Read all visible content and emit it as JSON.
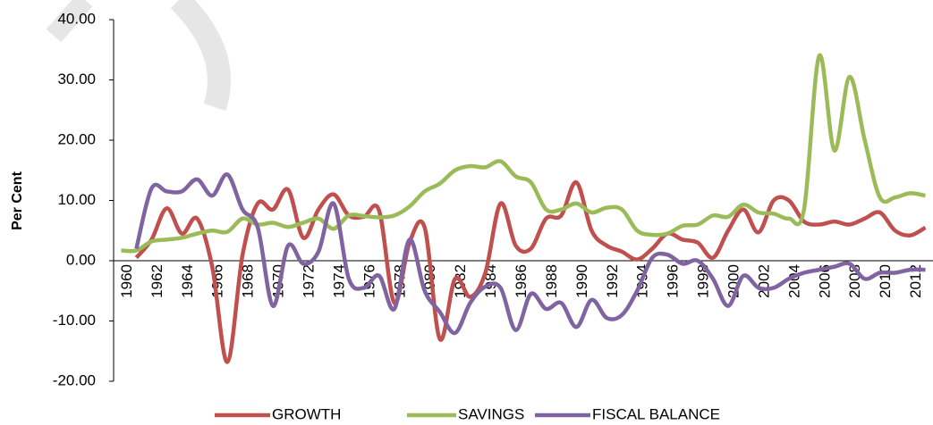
{
  "chart_data": {
    "type": "line",
    "y_axis_label": "Per Cent",
    "categories": [
      "1960",
      null,
      "1962",
      null,
      "1964",
      null,
      "1966",
      null,
      "1968",
      null,
      "1970",
      null,
      "1972",
      null,
      "1974",
      null,
      "1976",
      null,
      "1978",
      null,
      "1980",
      null,
      "1982",
      null,
      "1984",
      null,
      "1986",
      null,
      "1988",
      null,
      "1990",
      null,
      "1992",
      null,
      "1994",
      null,
      "1996",
      null,
      "1998",
      null,
      "2000",
      null,
      "2002",
      null,
      "2004",
      null,
      "2006",
      null,
      "2008",
      null,
      "2010",
      null,
      "2012",
      null
    ],
    "ylim": [
      -20,
      40
    ],
    "yticks": [
      {
        "value": -20,
        "label": "-20.00"
      },
      {
        "value": -10,
        "label": "-10.00"
      },
      {
        "value": 0,
        "label": "0.00"
      },
      {
        "value": 10,
        "label": "10.00"
      },
      {
        "value": 20,
        "label": "20.00"
      },
      {
        "value": 30,
        "label": "30.00"
      },
      {
        "value": 40,
        "label": "40.00"
      }
    ],
    "legend": "bottom",
    "series": [
      {
        "name": "GROWTH",
        "color": "#c0504d",
        "values": [
          null,
          0.5,
          3.5,
          8.7,
          4.5,
          7,
          -1,
          -16.8,
          1,
          9.5,
          8.5,
          11.8,
          3.8,
          8.5,
          11,
          7.5,
          7.3,
          8.3,
          -7,
          3,
          5.5,
          -13,
          -3,
          -6,
          -2,
          9.5,
          2.5,
          2,
          7,
          7.5,
          13,
          5,
          2.5,
          1.5,
          0.2,
          2,
          4.5,
          3.5,
          3,
          0.5,
          5,
          8.5,
          4.7,
          10,
          10,
          6.5,
          6,
          6.5,
          6,
          7,
          8,
          5,
          4.2,
          5.5
        ]
      },
      {
        "name": "SAVINGS",
        "color": "#9bbb59",
        "values": [
          1.7,
          1.7,
          3.2,
          3.5,
          3.8,
          4.5,
          5,
          4.8,
          7,
          6,
          6.3,
          5.6,
          6.3,
          7,
          5.3,
          7.5,
          7.4,
          7.2,
          7.5,
          9,
          11.5,
          12.8,
          15,
          15.7,
          15.5,
          16.5,
          14,
          13,
          8.5,
          8.5,
          9.5,
          8,
          8.8,
          8.5,
          5,
          4.3,
          4.5,
          5.8,
          6,
          7.5,
          7.3,
          9.3,
          8,
          7.8,
          7,
          8.5,
          34,
          18.3,
          30.5,
          20,
          10.5,
          10.5,
          11.2,
          10.8
        ]
      },
      {
        "name": "FISCAL BALANCE",
        "color": "#8064a2",
        "values": [
          null,
          2,
          12,
          11.5,
          11.5,
          13.5,
          10.8,
          14.3,
          8.5,
          5.5,
          -7.5,
          2.5,
          -0.5,
          1.5,
          9.5,
          -3,
          -4.5,
          -2.5,
          -8,
          3.5,
          -5,
          -8.5,
          -12,
          -7,
          -4.3,
          -4.5,
          -11.5,
          -5.5,
          -8,
          -7,
          -11,
          -6.5,
          -9.5,
          -9,
          -5,
          0.5,
          1,
          -0.5,
          0,
          -3,
          -7.5,
          -2.5,
          -4.5,
          -4.5,
          -3,
          -2,
          -1.5,
          -1,
          -0.5,
          -3,
          -2,
          -2,
          -1.5,
          -1.5
        ]
      }
    ]
  }
}
